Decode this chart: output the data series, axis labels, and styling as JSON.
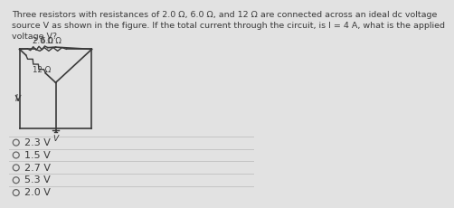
{
  "title_line1": "Three resistors with resistances of 2.0 Ω, 6.0 Ω, and 12 Ω are connected across an ideal dc voltage",
  "title_line2": "source V as shown in the figure. If the total current through the circuit, is I = 4 A, what is the applied",
  "title_line3": "voltage V?",
  "options": [
    "2.3 V",
    "1.5 V",
    "2.7 V",
    "5.3 V",
    "2.0 V"
  ],
  "resistor_labels": [
    "2.0 Ω",
    "6.0 Ω",
    "12 Ω"
  ],
  "label_I": "I",
  "label_V": "V",
  "bg_color": "#e2e2e2",
  "circuit_color": "#3a3a3a",
  "text_color": "#3a3a3a",
  "title_fontsize": 6.8,
  "option_fontsize": 8.0,
  "resistor_fontsize": 6.2
}
